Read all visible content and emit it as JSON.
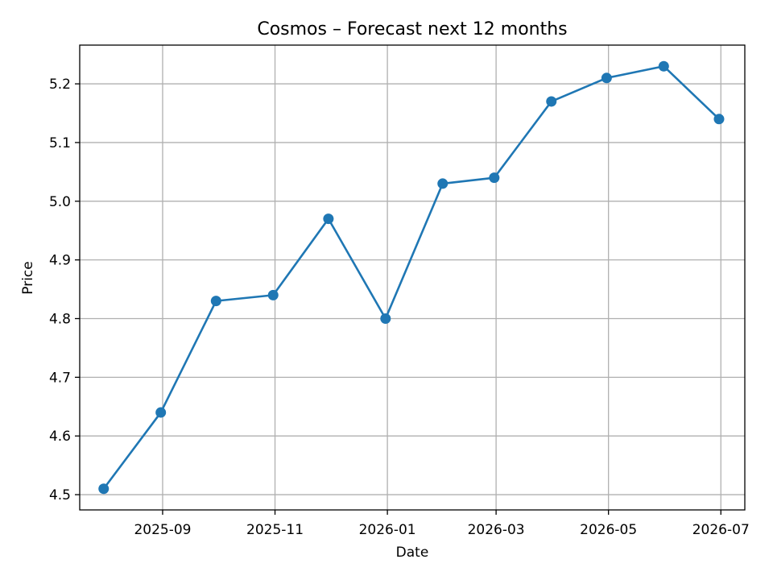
{
  "chart_data": {
    "type": "line",
    "title": "Cosmos – Forecast next 12 months",
    "xlabel": "Date",
    "ylabel": "Price",
    "grid": true,
    "x": [
      "2025-07-31",
      "2025-08-31",
      "2025-09-30",
      "2025-10-31",
      "2025-11-30",
      "2025-12-31",
      "2026-01-31",
      "2026-02-28",
      "2026-03-31",
      "2026-04-30",
      "2026-05-31",
      "2026-06-30"
    ],
    "series": [
      {
        "values": [
          4.51,
          4.64,
          4.83,
          4.84,
          4.97,
          4.8,
          5.03,
          5.04,
          5.17,
          5.21,
          5.23,
          5.14
        ]
      }
    ],
    "xticks": [
      "2025-09",
      "2025-11",
      "2026-01",
      "2026-03",
      "2026-05",
      "2026-07"
    ],
    "yticks": [
      "4.5",
      "4.6",
      "4.7",
      "4.8",
      "4.9",
      "5.0",
      "5.1",
      "5.2"
    ],
    "xlim": [
      "2025-07-18",
      "2026-07-14"
    ],
    "ylim": [
      4.474,
      5.266
    ],
    "colors": {
      "line": "#1f77b4",
      "grid": "#b0b0b0",
      "axes": "#000000"
    }
  }
}
